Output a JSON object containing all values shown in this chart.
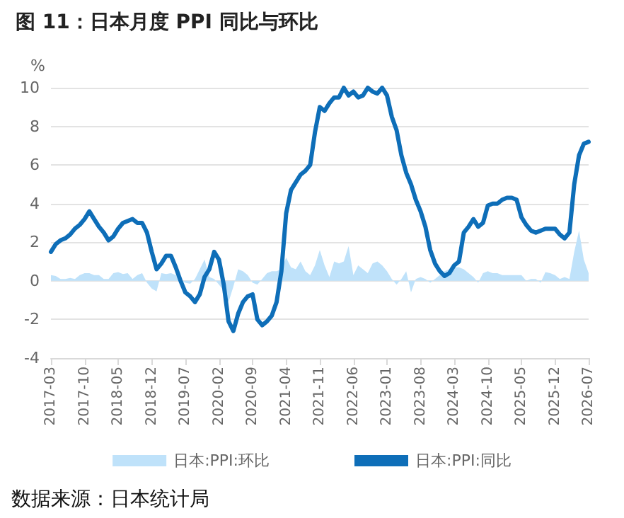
{
  "chart_data": {
    "type": "line",
    "title": "图 11：日本月度 PPI 同比与环比",
    "ylabel": "%",
    "annotations": [
      "数据来源：日本统计局"
    ],
    "categories": [
      "2017-03",
      null,
      null,
      null,
      null,
      null,
      null,
      "2017-10",
      null,
      null,
      null,
      null,
      null,
      null,
      "2018-05",
      null,
      null,
      null,
      null,
      null,
      null,
      "2018-12",
      null,
      null,
      null,
      null,
      null,
      null,
      "2019-07",
      null,
      null,
      null,
      null,
      null,
      null,
      "2020-02",
      null,
      null,
      null,
      null,
      null,
      null,
      "2020-09",
      null,
      null,
      null,
      null,
      null,
      null,
      "2021-04",
      null,
      null,
      null,
      null,
      null,
      null,
      "2021-11",
      null,
      null,
      null,
      null,
      null,
      null,
      "2022-06",
      null,
      null,
      null,
      null,
      null,
      null,
      "2023-01",
      null,
      null,
      null,
      null,
      null,
      null,
      "2023-08",
      null,
      null,
      null,
      null,
      null,
      null,
      "2024-03",
      null,
      null,
      null,
      null,
      null,
      null,
      "2024-10",
      null,
      null,
      null,
      null,
      null,
      null,
      "2025-05",
      null,
      null,
      null,
      null,
      null,
      null,
      "2025-12",
      null,
      null,
      null,
      null,
      null,
      null,
      "2026-07"
    ],
    "series": [
      {
        "name": "日本:PPI:环比",
        "type": "area",
        "color": "#bfe2fa",
        "values": [
          0.3,
          0.25,
          0.1,
          0.1,
          0.15,
          0.1,
          0.3,
          0.4,
          0.4,
          0.3,
          0.3,
          0.1,
          0.1,
          0.4,
          0.45,
          0.35,
          0.4,
          0.1,
          0.3,
          0.4,
          -0.1,
          -0.4,
          -0.55,
          0.4,
          0.35,
          0.4,
          0.3,
          0.0,
          -0.1,
          -0.15,
          0.1,
          0.6,
          1.1,
          0.2,
          0.1,
          -0.2,
          -0.5,
          -1.1,
          -0.3,
          0.6,
          0.5,
          0.3,
          -0.1,
          -0.2,
          0.1,
          0.4,
          0.5,
          0.5,
          0.6,
          1.2,
          0.7,
          0.6,
          1.0,
          0.5,
          0.3,
          0.8,
          1.6,
          0.8,
          0.2,
          1.0,
          0.9,
          1.0,
          1.8,
          0.3,
          0.8,
          0.6,
          0.4,
          0.9,
          1.0,
          0.8,
          0.5,
          0.1,
          -0.2,
          0.1,
          0.5,
          -0.6,
          0.1,
          0.2,
          0.1,
          -0.1,
          0.1,
          0.3,
          0.5,
          0.6,
          0.7,
          0.7,
          0.6,
          0.4,
          0.2,
          -0.1,
          0.4,
          0.5,
          0.4,
          0.4,
          0.3,
          0.3,
          0.3,
          0.3,
          0.3,
          0.0,
          0.1,
          0.1,
          -0.1,
          0.45,
          0.4,
          0.3,
          0.1,
          0.2,
          0.1,
          1.5,
          2.6,
          1.1,
          0.4
        ]
      },
      {
        "name": "日本:PPI:同比",
        "color": "#0e6eb8",
        "values": [
          1.5,
          1.9,
          2.1,
          2.2,
          2.4,
          2.7,
          2.9,
          3.2,
          3.6,
          3.2,
          2.8,
          2.5,
          2.1,
          2.3,
          2.7,
          3.0,
          3.1,
          3.2,
          3.0,
          3.0,
          2.5,
          1.5,
          0.6,
          0.9,
          1.3,
          1.3,
          0.7,
          0.0,
          -0.6,
          -0.8,
          -1.1,
          -0.7,
          0.2,
          0.6,
          1.5,
          1.1,
          -0.2,
          -2.1,
          -2.6,
          -1.7,
          -1.1,
          -0.8,
          -0.7,
          -2.0,
          -2.3,
          -2.1,
          -1.8,
          -1.1,
          0.5,
          3.5,
          4.7,
          5.1,
          5.5,
          5.7,
          6.0,
          7.7,
          9.0,
          8.8,
          9.2,
          9.5,
          9.5,
          10.0,
          9.6,
          9.8,
          9.5,
          9.6,
          10.0,
          9.8,
          9.7,
          10.0,
          9.6,
          8.5,
          7.8,
          6.5,
          5.6,
          5.0,
          4.2,
          3.6,
          2.8,
          1.6,
          0.9,
          0.5,
          0.25,
          0.4,
          0.8,
          1.0,
          2.5,
          2.8,
          3.2,
          2.8,
          3.0,
          3.9,
          4.0,
          4.0,
          4.2,
          4.3,
          4.3,
          4.2,
          3.3,
          2.9,
          2.6,
          2.5,
          2.6,
          2.7,
          2.7,
          2.7,
          2.4,
          2.2,
          2.5,
          5.0,
          6.5,
          7.1,
          7.2
        ]
      }
    ],
    "ylim": [
      -4,
      10
    ],
    "yticks": [
      -4,
      -2,
      0,
      2,
      4,
      6,
      8,
      10
    ],
    "grid": "y",
    "legend": "bottom",
    "marker": "none",
    "line_style": "solid"
  }
}
